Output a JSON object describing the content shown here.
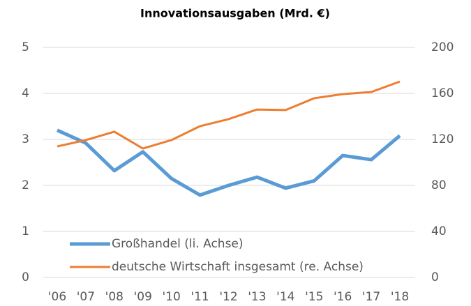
{
  "chart_data": {
    "type": "line",
    "title": "Innovationsausgaben (Mrd. €)",
    "categories": [
      "'06",
      "'07",
      "'08",
      "'09",
      "'10",
      "'11",
      "'12",
      "'13",
      "'14",
      "'15",
      "'16",
      "'17",
      "'18"
    ],
    "series": [
      {
        "name": "Großhandel (li. Achse)",
        "color": "#5b9bd5",
        "values": [
          3.2,
          2.92,
          2.32,
          2.73,
          2.15,
          1.79,
          2.0,
          2.18,
          1.94,
          2.1,
          2.65,
          2.56,
          3.08
        ]
      },
      {
        "name": "deutsche Wirtschaft insgesamt (re. Achse)",
        "color": "#ed7d31",
        "axis": "y2",
        "values": [
          113.9,
          119.4,
          126.7,
          112.1,
          119.4,
          131.5,
          137.6,
          146,
          145.5,
          155.8,
          159.4,
          161.2,
          170.3
        ]
      }
    ],
    "ylim": [
      0,
      5
    ],
    "yticks": [
      0,
      1,
      2,
      3,
      4,
      5
    ],
    "y2lim": [
      0,
      200
    ],
    "y2ticks": [
      0,
      40,
      80,
      120,
      160,
      200
    ],
    "grid": true,
    "legend": "lower left"
  }
}
